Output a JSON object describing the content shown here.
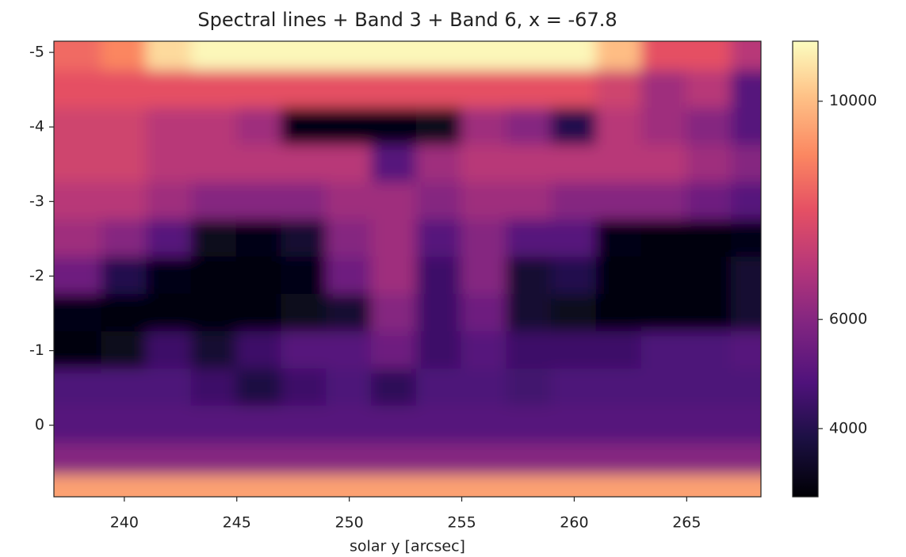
{
  "chart_data": {
    "type": "heatmap",
    "title": "Spectral lines + Band 3 + Band 6, x = -67.8",
    "xlabel": "solar y [arcsec]",
    "colormap": "magma",
    "x": [
      238,
      240,
      242,
      244,
      246,
      248,
      250,
      252,
      254,
      256,
      258,
      260,
      262,
      264,
      266,
      268
    ],
    "y": [
      -5,
      -4.5,
      -4,
      -3.5,
      -3,
      -2.5,
      -2,
      -1.5,
      -1,
      -0.5,
      0,
      0.5,
      0.85
    ],
    "values": [
      [
        8500,
        9000,
        10500,
        11000,
        11000,
        11000,
        11000,
        11000,
        11000,
        11000,
        11000,
        11000,
        10000,
        8000,
        8000,
        7000
      ],
      [
        8000,
        8000,
        8000,
        8000,
        8000,
        8000,
        8000,
        8000,
        8000,
        8000,
        8000,
        8000,
        7500,
        6500,
        7000,
        5000
      ],
      [
        7500,
        7500,
        7000,
        7000,
        6500,
        3000,
        3000,
        3000,
        3200,
        6500,
        6000,
        4000,
        7000,
        6500,
        6000,
        5000
      ],
      [
        7500,
        7500,
        7000,
        7000,
        7000,
        7000,
        7000,
        5000,
        6500,
        7000,
        7000,
        7000,
        7000,
        7000,
        6500,
        6000
      ],
      [
        7000,
        7000,
        6500,
        6000,
        6000,
        6000,
        6500,
        6500,
        6000,
        6500,
        6500,
        6000,
        6000,
        6000,
        5500,
        5000
      ],
      [
        6500,
        6000,
        5000,
        3200,
        3000,
        3500,
        6000,
        6500,
        5000,
        6000,
        5000,
        5000,
        3000,
        2900,
        2900,
        3000
      ],
      [
        5500,
        4000,
        3000,
        2900,
        2900,
        3000,
        5500,
        6500,
        4500,
        6000,
        3500,
        4000,
        2900,
        2900,
        2900,
        3500
      ],
      [
        3000,
        2900,
        2900,
        2900,
        2900,
        3200,
        3500,
        6000,
        4500,
        5500,
        3500,
        3200,
        2900,
        2900,
        2900,
        3500
      ],
      [
        2900,
        3200,
        4500,
        3500,
        4500,
        5000,
        5000,
        5500,
        4500,
        5000,
        4500,
        4500,
        4500,
        4800,
        4800,
        5000
      ],
      [
        4800,
        4800,
        4800,
        4500,
        3800,
        4500,
        4800,
        4200,
        4800,
        4800,
        4600,
        4800,
        4800,
        4800,
        4800,
        4800
      ],
      [
        5000,
        5000,
        5000,
        5000,
        5000,
        5000,
        5000,
        5000,
        5000,
        5000,
        5000,
        5000,
        5000,
        5000,
        5000,
        5000
      ],
      [
        6000,
        6000,
        6000,
        6000,
        6000,
        6000,
        6000,
        6000,
        6000,
        6000,
        6000,
        6000,
        6000,
        6000,
        6000,
        6000
      ],
      [
        9500,
        9500,
        9500,
        9500,
        9500,
        9500,
        9500,
        9500,
        9500,
        9500,
        9500,
        9500,
        9500,
        9500,
        9500,
        9500
      ]
    ],
    "xlim": [
      236.87,
      268.3
    ],
    "ylim": [
      0.96,
      -5.15
    ],
    "xticks": [
      240,
      245,
      250,
      255,
      260,
      265
    ],
    "yticks": [
      -5,
      -4,
      -3,
      -2,
      -1,
      0
    ],
    "clim": [
      2750,
      11100
    ],
    "cticks": [
      4000,
      6000,
      10000
    ]
  }
}
